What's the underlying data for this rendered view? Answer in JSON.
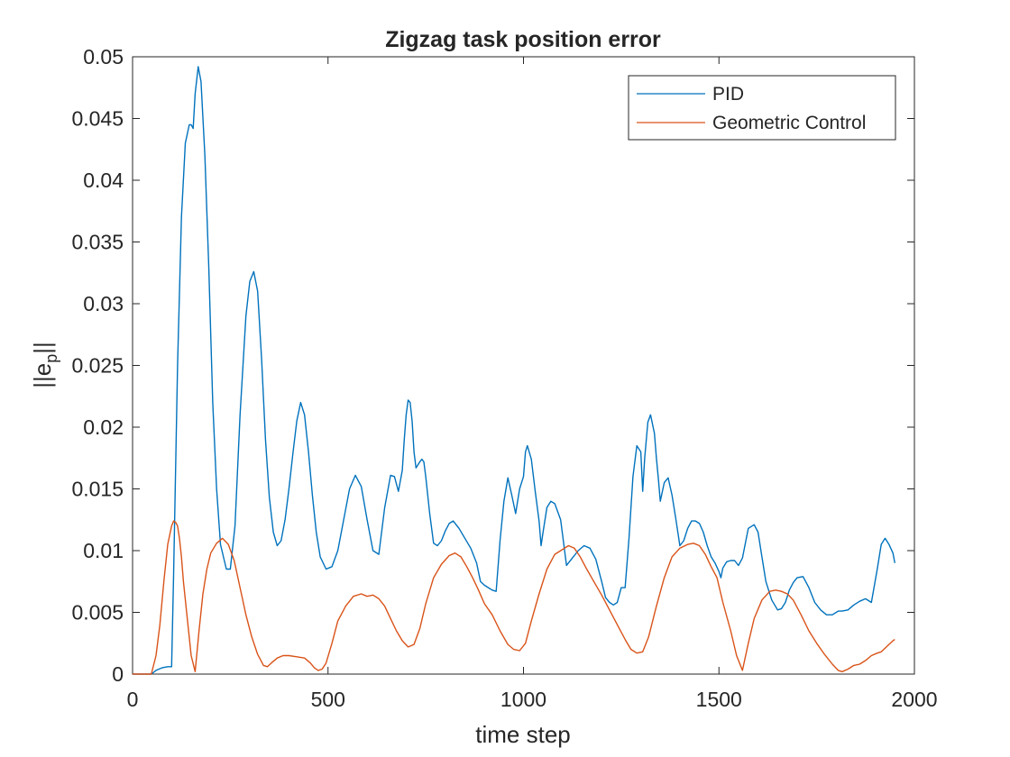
{
  "chart_data": {
    "type": "line",
    "title": "Zigzag task position error",
    "xlabel": "time step",
    "ylabel_main": "||e",
    "ylabel_sub": "p",
    "ylabel_end": "||",
    "xlim": [
      0,
      2000
    ],
    "ylim": [
      0,
      0.05
    ],
    "xticks": [
      0,
      500,
      1000,
      1500,
      2000
    ],
    "xtick_labels": [
      "0",
      "500",
      "1000",
      "1500",
      "2000"
    ],
    "yticks": [
      0,
      0.005,
      0.01,
      0.015,
      0.02,
      0.025,
      0.03,
      0.035,
      0.04,
      0.045,
      0.05
    ],
    "ytick_labels": [
      "0",
      "0.005",
      "0.01",
      "0.015",
      "0.02",
      "0.025",
      "0.03",
      "0.035",
      "0.04",
      "0.045",
      "0.05"
    ],
    "grid": false,
    "legend_position": "top-right",
    "series": [
      {
        "name": "PID",
        "color": "#0072BD",
        "x": [
          0,
          48,
          60,
          75,
          90,
          100,
          105,
          115,
          125,
          135,
          145,
          150,
          155,
          160,
          168,
          175,
          185,
          195,
          205,
          215,
          225,
          240,
          250,
          262,
          275,
          290,
          300,
          310,
          320,
          330,
          340,
          350,
          360,
          370,
          380,
          390,
          400,
          410,
          420,
          430,
          440,
          450,
          460,
          470,
          480,
          495,
          510,
          525,
          540,
          555,
          570,
          585,
          600,
          615,
          630,
          645,
          660,
          670,
          680,
          690,
          695,
          700,
          705,
          710,
          715,
          720,
          725,
          735,
          740,
          745,
          750,
          760,
          770,
          780,
          790,
          800,
          810,
          820,
          835,
          850,
          865,
          880,
          890,
          900,
          910,
          920,
          930,
          940,
          950,
          960,
          970,
          980,
          990,
          1000,
          1005,
          1010,
          1020,
          1030,
          1040,
          1045,
          1050,
          1060,
          1070,
          1080,
          1095,
          1110,
          1125,
          1140,
          1155,
          1170,
          1185,
          1200,
          1210,
          1220,
          1230,
          1240,
          1250,
          1260,
          1270,
          1280,
          1290,
          1300,
          1305,
          1310,
          1318,
          1325,
          1335,
          1340,
          1345,
          1350,
          1360,
          1370,
          1380,
          1390,
          1400,
          1410,
          1420,
          1430,
          1440,
          1450,
          1460,
          1470,
          1480,
          1490,
          1500,
          1505,
          1510,
          1520,
          1530,
          1540,
          1550,
          1560,
          1575,
          1590,
          1600,
          1610,
          1620,
          1635,
          1650,
          1660,
          1670,
          1680,
          1690,
          1700,
          1715,
          1730,
          1745,
          1760,
          1775,
          1790,
          1805,
          1815,
          1830,
          1845,
          1860,
          1875,
          1890,
          1905,
          1915,
          1925,
          1935,
          1945,
          1950
        ],
        "values": [
          0,
          0,
          0.0003,
          0.0005,
          0.0006,
          0.0006,
          0.008,
          0.025,
          0.037,
          0.043,
          0.0445,
          0.0445,
          0.0442,
          0.047,
          0.0492,
          0.048,
          0.042,
          0.033,
          0.022,
          0.015,
          0.0105,
          0.0085,
          0.0085,
          0.012,
          0.021,
          0.029,
          0.0318,
          0.0326,
          0.031,
          0.0255,
          0.019,
          0.0143,
          0.0115,
          0.0104,
          0.0108,
          0.0125,
          0.015,
          0.0178,
          0.0205,
          0.022,
          0.021,
          0.018,
          0.0145,
          0.0115,
          0.0095,
          0.0085,
          0.0087,
          0.01,
          0.0125,
          0.015,
          0.0161,
          0.0152,
          0.0125,
          0.01,
          0.0097,
          0.0135,
          0.0161,
          0.016,
          0.0148,
          0.0165,
          0.019,
          0.021,
          0.0222,
          0.022,
          0.0205,
          0.018,
          0.0167,
          0.0172,
          0.0174,
          0.0172,
          0.016,
          0.013,
          0.0106,
          0.0104,
          0.0108,
          0.0116,
          0.0122,
          0.0124,
          0.0118,
          0.011,
          0.0102,
          0.009,
          0.0075,
          0.0072,
          0.007,
          0.0068,
          0.0067,
          0.0108,
          0.014,
          0.0159,
          0.0145,
          0.013,
          0.015,
          0.016,
          0.018,
          0.0185,
          0.0174,
          0.0148,
          0.0124,
          0.0104,
          0.0115,
          0.0135,
          0.014,
          0.0138,
          0.0125,
          0.0088,
          0.0094,
          0.01,
          0.0104,
          0.0102,
          0.0093,
          0.0075,
          0.0062,
          0.0058,
          0.0056,
          0.0058,
          0.007,
          0.007,
          0.011,
          0.016,
          0.0185,
          0.018,
          0.0148,
          0.0175,
          0.0204,
          0.021,
          0.0195,
          0.0175,
          0.0158,
          0.014,
          0.0155,
          0.0159,
          0.0145,
          0.0125,
          0.0104,
          0.0108,
          0.0118,
          0.0124,
          0.0124,
          0.0122,
          0.0115,
          0.0104,
          0.0095,
          0.009,
          0.0083,
          0.0078,
          0.0086,
          0.0091,
          0.0092,
          0.0092,
          0.0088,
          0.0094,
          0.0118,
          0.0121,
          0.0115,
          0.0095,
          0.0075,
          0.006,
          0.0052,
          0.0053,
          0.0058,
          0.0068,
          0.0074,
          0.0078,
          0.0079,
          0.007,
          0.0058,
          0.0052,
          0.0048,
          0.0048,
          0.0051,
          0.0051,
          0.0052,
          0.0056,
          0.0059,
          0.0061,
          0.0058,
          0.0085,
          0.0105,
          0.011,
          0.0105,
          0.0098,
          0.009
        ]
      },
      {
        "name": "Geometric Control",
        "color": "#D95319",
        "x": [
          0,
          48,
          60,
          70,
          80,
          90,
          100,
          105,
          110,
          115,
          120,
          125,
          130,
          140,
          150,
          160,
          170,
          180,
          190,
          200,
          215,
          230,
          245,
          260,
          275,
          290,
          305,
          320,
          335,
          345,
          355,
          370,
          385,
          400,
          420,
          440,
          455,
          465,
          475,
          485,
          495,
          510,
          525,
          545,
          565,
          585,
          600,
          615,
          630,
          645,
          660,
          675,
          690,
          705,
          720,
          735,
          750,
          770,
          790,
          810,
          825,
          840,
          855,
          870,
          885,
          900,
          920,
          940,
          960,
          975,
          990,
          1005,
          1020,
          1040,
          1060,
          1080,
          1100,
          1115,
          1130,
          1145,
          1160,
          1180,
          1200,
          1220,
          1240,
          1260,
          1275,
          1290,
          1305,
          1320,
          1340,
          1360,
          1380,
          1400,
          1420,
          1435,
          1450,
          1465,
          1480,
          1495,
          1510,
          1530,
          1545,
          1560,
          1575,
          1590,
          1610,
          1630,
          1645,
          1660,
          1675,
          1690,
          1710,
          1730,
          1750,
          1770,
          1790,
          1805,
          1815,
          1830,
          1845,
          1860,
          1875,
          1890,
          1905,
          1915,
          1925,
          1935,
          1945,
          1950
        ],
        "values": [
          0,
          0,
          0.0015,
          0.004,
          0.0075,
          0.0105,
          0.012,
          0.0124,
          0.0123,
          0.012,
          0.011,
          0.0095,
          0.0075,
          0.0045,
          0.0015,
          0.0002,
          0.0035,
          0.0065,
          0.0085,
          0.0098,
          0.0106,
          0.011,
          0.0105,
          0.0092,
          0.007,
          0.0048,
          0.003,
          0.0016,
          0.0007,
          0.0006,
          0.0009,
          0.0013,
          0.0015,
          0.0015,
          0.0014,
          0.0013,
          0.0009,
          0.0005,
          0.0003,
          0.0004,
          0.0009,
          0.0025,
          0.0043,
          0.0055,
          0.0063,
          0.0065,
          0.0063,
          0.0064,
          0.0061,
          0.0055,
          0.0045,
          0.0035,
          0.0027,
          0.0022,
          0.0024,
          0.0037,
          0.0057,
          0.0078,
          0.0089,
          0.0096,
          0.0098,
          0.0095,
          0.0087,
          0.0078,
          0.0068,
          0.0057,
          0.0048,
          0.0035,
          0.0024,
          0.002,
          0.0019,
          0.0025,
          0.0043,
          0.0065,
          0.0085,
          0.0097,
          0.0101,
          0.0104,
          0.0102,
          0.0095,
          0.0086,
          0.0075,
          0.0064,
          0.0052,
          0.004,
          0.0028,
          0.002,
          0.0017,
          0.0018,
          0.003,
          0.0055,
          0.0078,
          0.0095,
          0.0102,
          0.0105,
          0.0106,
          0.0104,
          0.0097,
          0.0087,
          0.0078,
          0.0058,
          0.0035,
          0.0015,
          0.0003,
          0.0025,
          0.0045,
          0.006,
          0.0067,
          0.0068,
          0.0067,
          0.0065,
          0.006,
          0.0048,
          0.0035,
          0.0025,
          0.0016,
          0.0008,
          0.0003,
          0.0002,
          0.0004,
          0.0007,
          0.0008,
          0.0011,
          0.0015,
          0.0017,
          0.0018,
          0.0021,
          0.0024,
          0.0027,
          0.0028
        ]
      }
    ]
  }
}
